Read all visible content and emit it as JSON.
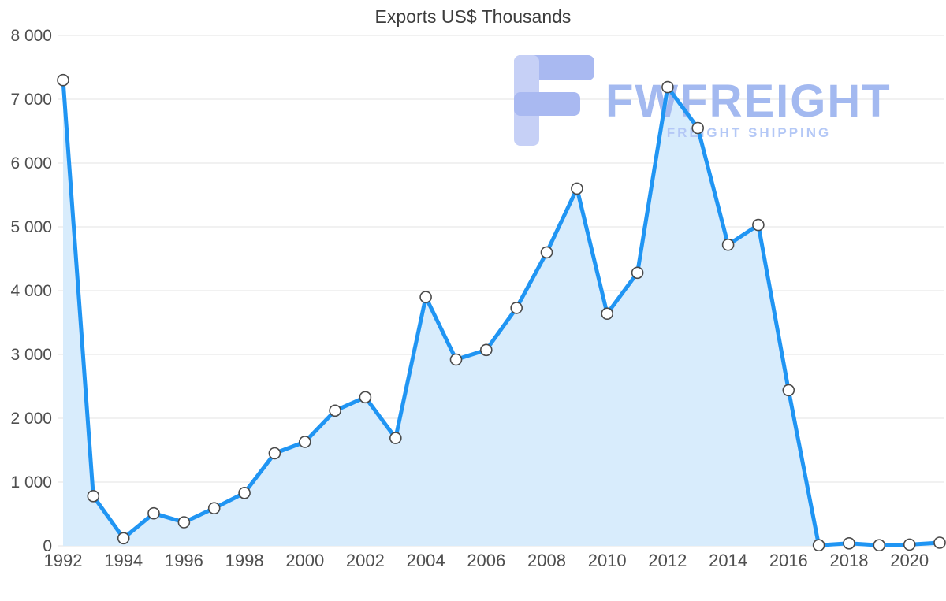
{
  "title": "Exports US$ Thousands",
  "watermark": {
    "brand": "FWFREIGHT",
    "tagline": "FREIGHT SHIPPING",
    "logo_color_light": "#c6d0f6",
    "logo_color_dark": "#a9b9f1",
    "brand_color": "#a3b9f0",
    "tagline_color": "#b4c8f6"
  },
  "chart_data": {
    "type": "area",
    "title": "Exports US$ Thousands",
    "xlabel": "",
    "ylabel": "",
    "x": [
      1992,
      1993,
      1994,
      1995,
      1996,
      1997,
      1998,
      1999,
      2000,
      2001,
      2002,
      2003,
      2004,
      2005,
      2006,
      2007,
      2008,
      2009,
      2010,
      2011,
      2012,
      2013,
      2014,
      2015,
      2016,
      2017,
      2018,
      2019,
      2020,
      2021
    ],
    "values": [
      7300,
      780,
      120,
      510,
      370,
      590,
      830,
      1450,
      1630,
      2120,
      2330,
      1690,
      3900,
      2920,
      3070,
      3730,
      4600,
      5600,
      3640,
      4280,
      7190,
      6550,
      4720,
      5030,
      2440,
      10,
      40,
      10,
      20,
      50
    ],
    "ylim": [
      0,
      8000
    ],
    "y_ticks": [
      0,
      1000,
      2000,
      3000,
      4000,
      5000,
      6000,
      7000,
      8000
    ],
    "y_tick_labels": [
      "0",
      "1 000",
      "2 000",
      "3 000",
      "4 000",
      "5 000",
      "6 000",
      "7 000",
      "8 000"
    ],
    "x_tick_labels": [
      "1992",
      "1994",
      "1996",
      "1998",
      "2000",
      "2002",
      "2004",
      "2006",
      "2008",
      "2010",
      "2012",
      "2014",
      "2016",
      "2018",
      "2020"
    ],
    "grid": true,
    "legend": "none",
    "colors": {
      "line": "#2095f3",
      "area": "#d8ecfc",
      "marker_fill": "#ffffff",
      "marker_stroke": "#4a4a4a",
      "grid": "#e3e3e3",
      "label": "#4f4f4f",
      "title": "#3d3d3d"
    }
  }
}
